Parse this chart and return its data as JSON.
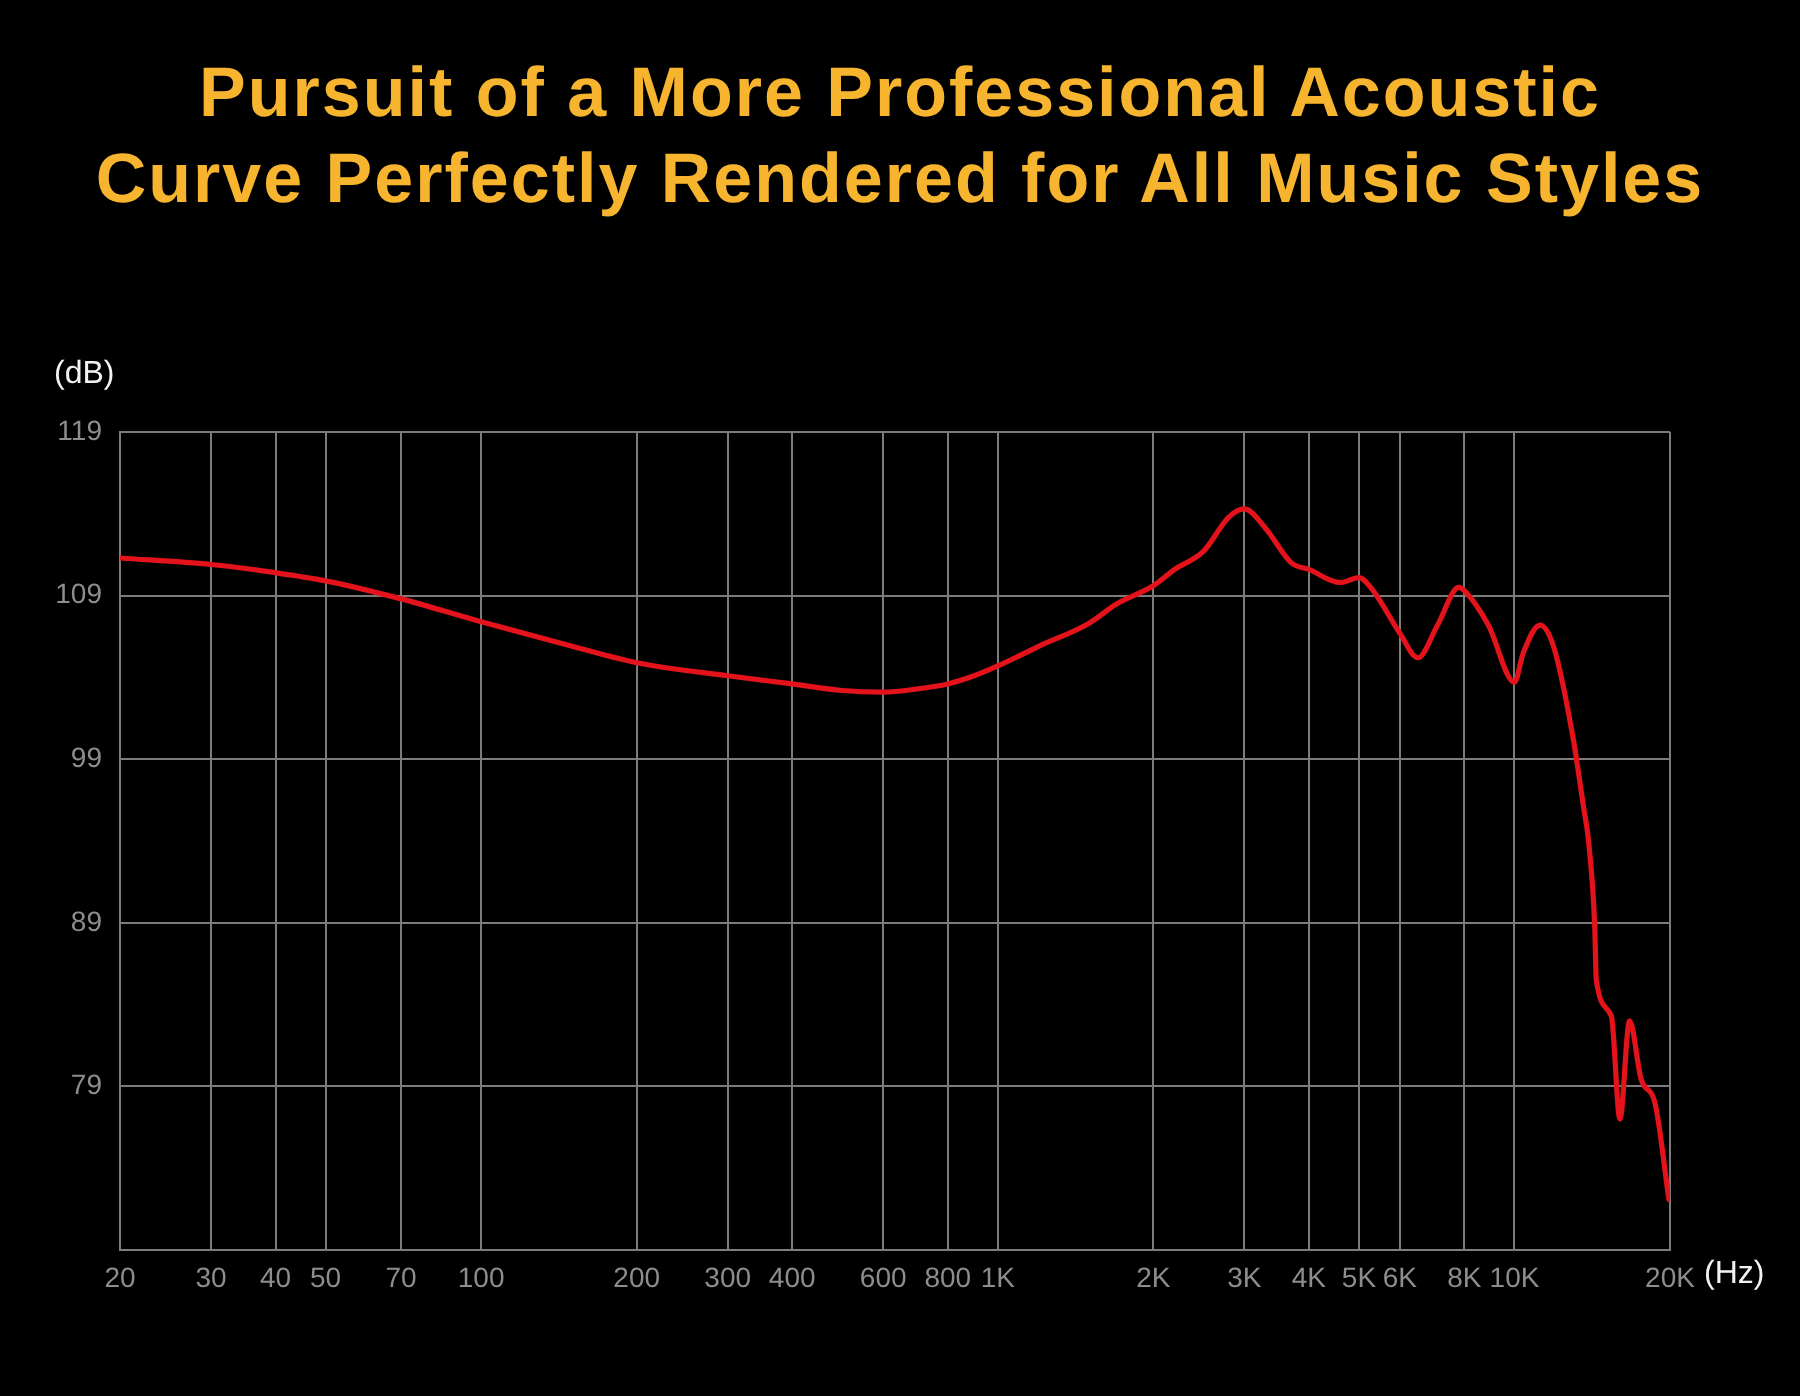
{
  "chart_data": {
    "type": "line",
    "title": "Pursuit of a More Professional Acoustic\nCurve Perfectly Rendered for All Music Styles",
    "xlabel": "(Hz)",
    "ylabel": "(dB)",
    "log": "x",
    "grid": true,
    "marker": "none",
    "x": [
      20,
      30,
      40,
      50,
      70,
      100,
      150,
      200,
      300,
      400,
      500,
      600,
      700,
      800,
      900,
      1000,
      1200,
      1500,
      1700,
      2000,
      2200,
      2500,
      2800,
      3000,
      3300,
      3700,
      4000,
      4600,
      5000,
      5300,
      6000,
      6500,
      7100,
      7800,
      8000,
      8900,
      10000,
      10400,
      11200,
      11900,
      13000,
      13600,
      13900,
      14300,
      14400,
      15400,
      16000,
      16700,
      17600,
      18700,
      19900
    ],
    "series": [
      {
        "color": "#e3121b",
        "values": [
          111.3,
          110.9,
          110.4,
          109.9,
          108.8,
          107.4,
          105.9,
          104.9,
          104.1,
          103.6,
          103.2,
          103.1,
          103.3,
          103.6,
          104.1,
          104.7,
          105.9,
          107.3,
          108.5,
          109.6,
          110.6,
          111.7,
          113.8,
          114.3,
          113.1,
          111.0,
          110.6,
          109.8,
          110.1,
          109.4,
          106.7,
          105.2,
          107.2,
          109.5,
          109.3,
          107.2,
          103.7,
          105.5,
          107.2,
          105.9,
          100.2,
          96.1,
          94.1,
          88.8,
          85.5,
          83.3,
          77.0,
          83.0,
          79.4,
          78.0,
          72.1
        ]
      }
    ],
    "xlim": [
      20,
      20000
    ],
    "xticks": [
      20,
      30,
      40,
      50,
      70,
      100,
      200,
      300,
      400,
      600,
      800,
      {
        "value": 1000,
        "label": "1K"
      },
      {
        "value": 2000,
        "label": "2K"
      },
      {
        "value": 3000,
        "label": "3K"
      },
      {
        "value": 4000,
        "label": "4K"
      },
      {
        "value": 5000,
        "label": "5K"
      },
      {
        "value": 6000,
        "label": "6K"
      },
      {
        "value": 8000,
        "label": "8K"
      },
      {
        "value": 10000,
        "label": "10K"
      },
      {
        "value": 20000,
        "label": "20K"
      }
    ],
    "ylim": [
      69,
      119
    ],
    "yticks": [
      79,
      89,
      99,
      109,
      119
    ]
  }
}
